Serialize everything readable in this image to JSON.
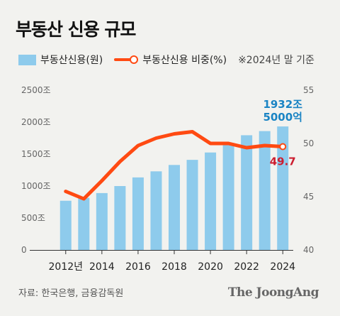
{
  "header": {
    "title": "부동산 신용 규모"
  },
  "legend": {
    "bar_label": "부동산신용(원)",
    "line_label": "부동산신용 비중(%)",
    "note": "※2024년 말 기준"
  },
  "footer": {
    "source": "자료: 한국은행, 금융감독원",
    "logo": "The JoongAng"
  },
  "colors": {
    "bar": "#8ecbec",
    "line": "#ff4a12",
    "bar_label": "#1a84c4",
    "line_label": "#cc1d2f"
  },
  "chart_data": {
    "type": "bar+line",
    "categories": [
      "2012",
      "2013",
      "2014",
      "2015",
      "2016",
      "2017",
      "2018",
      "2019",
      "2020",
      "2021",
      "2022",
      "2023",
      "2024"
    ],
    "x_tick_labels": [
      "2012년",
      "2014",
      "2016",
      "2018",
      "2020",
      "2022",
      "2024"
    ],
    "x_tick_categories": [
      "2012",
      "2014",
      "2016",
      "2018",
      "2020",
      "2022",
      "2024"
    ],
    "series": [
      {
        "name": "부동산신용(원)",
        "type": "bar",
        "axis": "left",
        "values": [
          770,
          815,
          890,
          1000,
          1135,
          1230,
          1330,
          1410,
          1525,
          1675,
          1795,
          1860,
          1932.5
        ]
      },
      {
        "name": "부동산신용 비중(%)",
        "type": "line",
        "axis": "right",
        "values": [
          45.5,
          44.8,
          46.5,
          48.3,
          49.8,
          50.5,
          50.9,
          51.1,
          50.0,
          50.0,
          49.6,
          49.8,
          49.7
        ]
      }
    ],
    "left_axis": {
      "ylim": [
        0,
        2500
      ],
      "ticks": [
        0,
        500,
        1000,
        1500,
        2000,
        2500
      ],
      "tick_labels": [
        "0",
        "500조",
        "1000조",
        "1500조",
        "2000조",
        "2500조"
      ]
    },
    "right_axis": {
      "ylim": [
        40,
        55
      ],
      "ticks": [
        40,
        45,
        50,
        55
      ],
      "tick_labels": [
        "40",
        "45",
        "50",
        "55"
      ]
    },
    "annotations": {
      "bar_last": [
        "1932조",
        "5000억"
      ],
      "line_last": "49.7"
    }
  }
}
